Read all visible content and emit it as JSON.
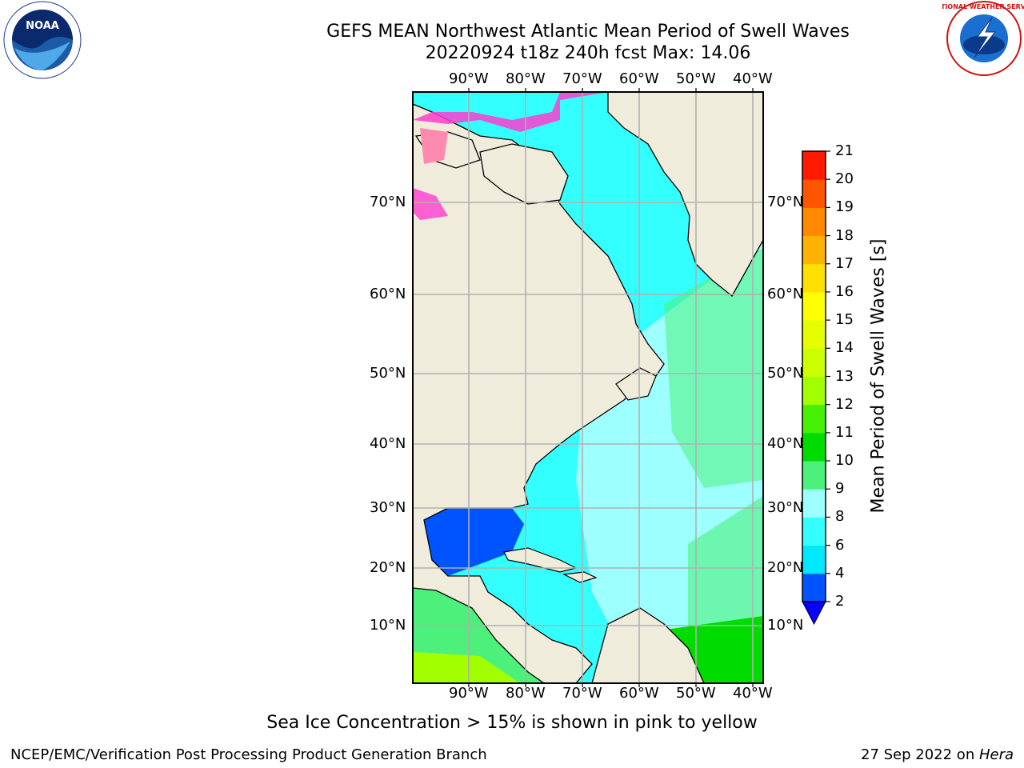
{
  "header": {
    "title_line1": "GEFS MEAN Northwest Atlantic Mean Period of Swell Waves",
    "title_line2": "20220924 t18z 240h fcst   Max: 14.06"
  },
  "logos": {
    "left": {
      "name": "noaa-logo",
      "text": "NOAA"
    },
    "right": {
      "name": "national-weather-service-logo",
      "text": "NATIONAL WEATHER SERVICE"
    }
  },
  "map": {
    "lon_ticks_top": [
      "90°W",
      "80°W",
      "70°W",
      "60°W",
      "50°W",
      "40°W"
    ],
    "lon_ticks_bottom": [
      "90°W",
      "80°W",
      "70°W",
      "60°W",
      "50°W",
      "40°W"
    ],
    "lat_ticks_left": [
      "70°N",
      "60°N",
      "50°N",
      "40°N",
      "30°N",
      "20°N",
      "10°N"
    ],
    "lat_ticks_right": [
      "70°N",
      "60°N",
      "50°N",
      "40°N",
      "30°N",
      "20°N",
      "10°N"
    ],
    "colors": {
      "land": "#efecdc",
      "grid": "#b0b0b0",
      "coast": "#000000"
    }
  },
  "colorbar": {
    "label": "Mean Period of Swell Waves [s]",
    "ticks": [
      "2",
      "4",
      "6",
      "8",
      "9",
      "10",
      "11",
      "12",
      "13",
      "14",
      "15",
      "16",
      "17",
      "18",
      "19",
      "20",
      "21"
    ],
    "colors": [
      "#0054ff",
      "#00e8ff",
      "#33ffff",
      "#9effff",
      "#4cf07a",
      "#00dc00",
      "#46f000",
      "#a2ff00",
      "#cbff00",
      "#e6ff00",
      "#ffff00",
      "#ffe000",
      "#ffb300",
      "#ff8a00",
      "#ff5500",
      "#ff1a00"
    ],
    "under_color": "#0a00ff"
  },
  "notes": {
    "ice": "Sea Ice Concentration > 15% is shown in pink to yellow"
  },
  "footer": {
    "left": "NCEP/EMC/Verification Post Processing Product Generation Branch",
    "date": "27 Sep 2022 on ",
    "host": "Hera"
  }
}
